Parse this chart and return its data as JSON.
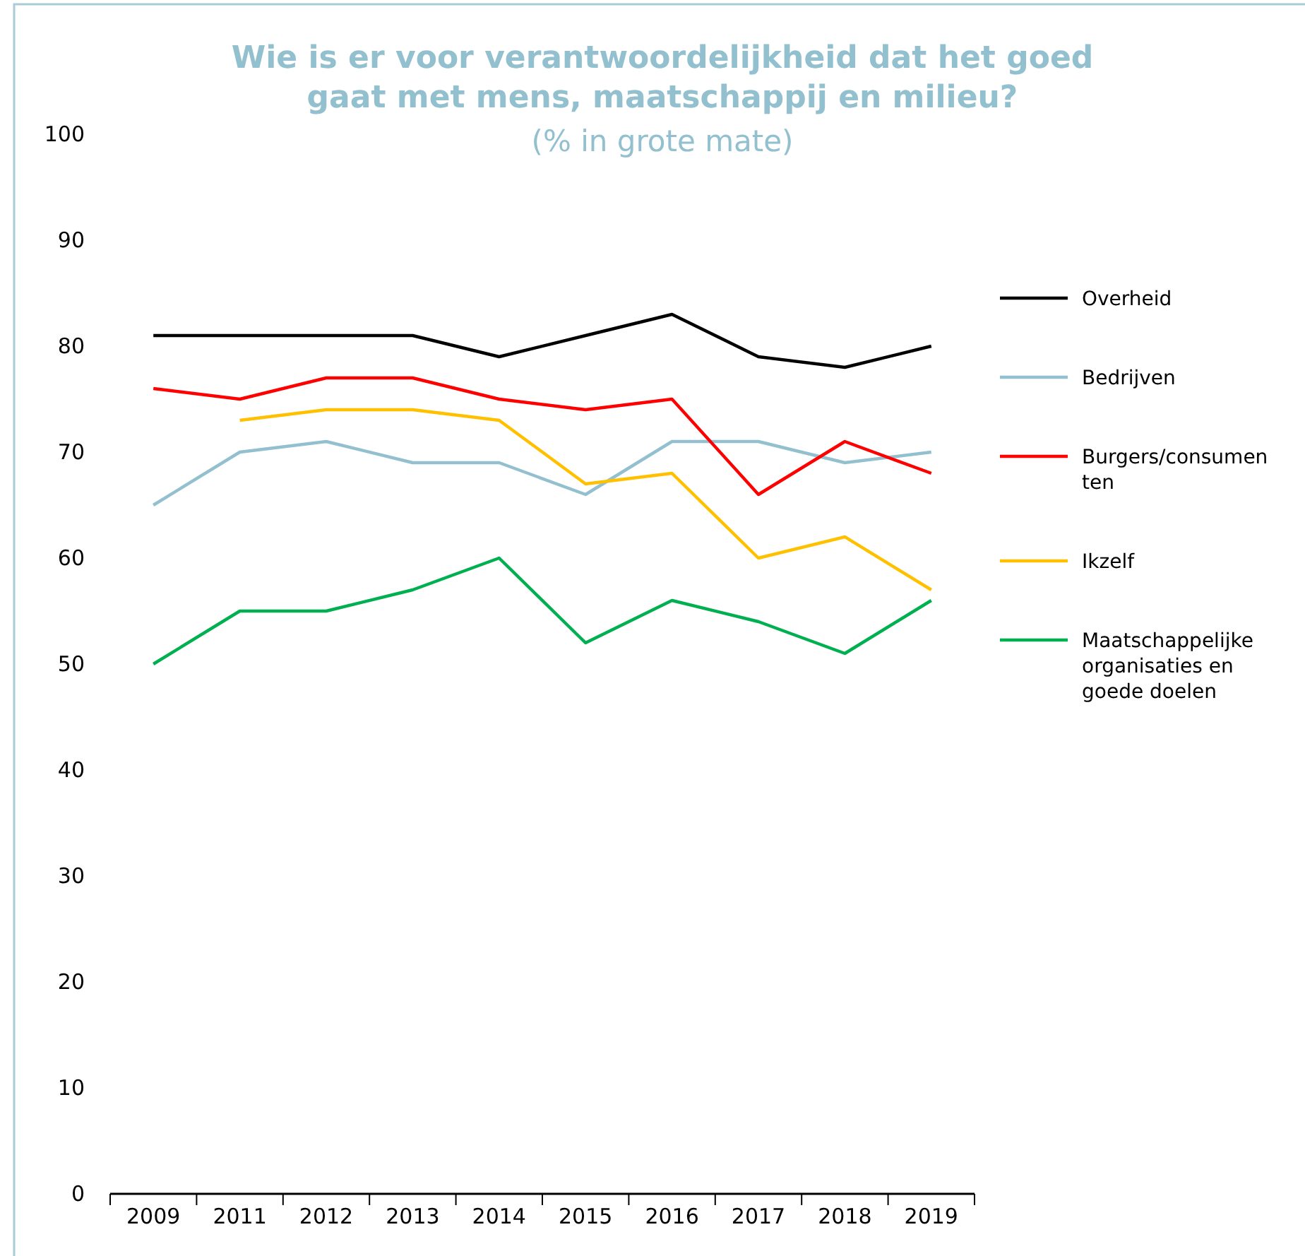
{
  "chart_data": {
    "type": "line",
    "title": "Wie is er voor verantwoordelijkheid dat het goed gaat met mens, maatschappij en milieu?",
    "subtitle": "(% in grote mate)",
    "categories": [
      "2009",
      "2011",
      "2012",
      "2013",
      "2014",
      "2015",
      "2016",
      "2017",
      "2018",
      "2019"
    ],
    "series": [
      {
        "name": "Overheid",
        "color": "#000000",
        "values": [
          81,
          81,
          81,
          81,
          79,
          81,
          83,
          79,
          78,
          80
        ]
      },
      {
        "name": "Bedrijven",
        "color": "#93c0cf",
        "values": [
          65,
          70,
          71,
          69,
          69,
          66,
          71,
          71,
          69,
          70
        ]
      },
      {
        "name": "Burgers/consumenten",
        "color": "#ff0000",
        "values": [
          76,
          75,
          77,
          77,
          75,
          74,
          75,
          66,
          71,
          68
        ]
      },
      {
        "name": "Ikzelf",
        "color": "#ffc000",
        "values": [
          null,
          73,
          74,
          74,
          73,
          67,
          68,
          60,
          62,
          57
        ]
      },
      {
        "name": "Maatschappelijke organisaties en goede doelen",
        "color": "#00b050",
        "values": [
          50,
          55,
          55,
          57,
          60,
          52,
          56,
          54,
          51,
          56
        ]
      }
    ],
    "ylim": [
      0,
      100
    ],
    "yticks": [
      0,
      10,
      20,
      30,
      40,
      50,
      60,
      70,
      80,
      90,
      100
    ],
    "grid": false,
    "legend": "right",
    "line_style": "solid",
    "marker": "none"
  }
}
